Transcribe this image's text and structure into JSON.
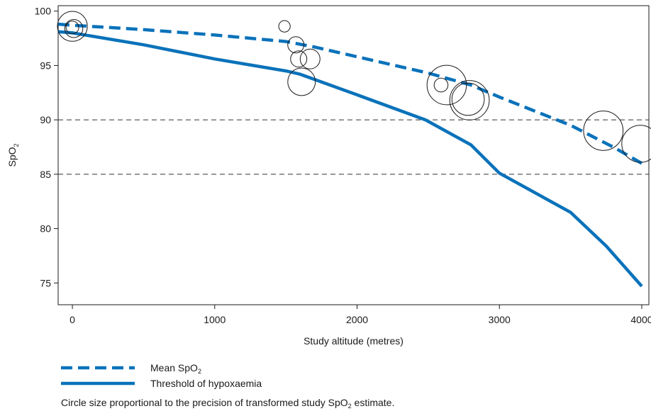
{
  "chart_data": {
    "type": "line",
    "xlabel": "Study altitude (metres)",
    "ylabel": {
      "base": "SpO",
      "sub": "2"
    },
    "xlim": [
      -100,
      4050
    ],
    "ylim": [
      73,
      100.5
    ],
    "xticks": [
      0,
      1000,
      2000,
      3000,
      4000
    ],
    "yticks": [
      75,
      80,
      85,
      90,
      95,
      100
    ],
    "reference_lines": [
      90,
      85
    ],
    "grid": false,
    "colors": {
      "series": "#0a72ba",
      "points": "#1a1a1a",
      "reference": "#333333"
    },
    "series": [
      {
        "name": "Mean SpO₂",
        "style": "dashed",
        "x": [
          -100,
          0,
          500,
          1000,
          1500,
          1700,
          2000,
          2500,
          2800,
          3000,
          3500,
          3800,
          4000
        ],
        "y": [
          98.8,
          98.7,
          98.3,
          97.8,
          97.2,
          96.7,
          95.8,
          94.3,
          93.2,
          92.1,
          89.5,
          87.5,
          86.0
        ]
      },
      {
        "name": "Threshold of hypoxaemia",
        "style": "solid",
        "x": [
          -100,
          0,
          500,
          1000,
          1500,
          1600,
          2000,
          2480,
          2800,
          3000,
          3500,
          3750,
          4000
        ],
        "y": [
          98.1,
          98.0,
          96.9,
          95.6,
          94.5,
          94.2,
          92.3,
          90.0,
          87.7,
          85.1,
          81.5,
          78.4,
          74.7
        ]
      }
    ],
    "points": [
      {
        "x": 0,
        "y": 98.6,
        "weight": 3.6
      },
      {
        "x": 10,
        "y": 98.4,
        "weight": 1.6
      },
      {
        "x": 0,
        "y": 98.5,
        "weight": 0.7
      },
      {
        "x": 1490,
        "y": 98.6,
        "weight": 0.5
      },
      {
        "x": 1570,
        "y": 96.9,
        "weight": 1.3
      },
      {
        "x": 1590,
        "y": 95.6,
        "weight": 1.3
      },
      {
        "x": 1670,
        "y": 95.6,
        "weight": 1.9
      },
      {
        "x": 1610,
        "y": 93.5,
        "weight": 3.2
      },
      {
        "x": 2590,
        "y": 93.2,
        "weight": 0.9
      },
      {
        "x": 2630,
        "y": 93.2,
        "weight": 5.2
      },
      {
        "x": 2780,
        "y": 91.9,
        "weight": 4.0
      },
      {
        "x": 2790,
        "y": 91.8,
        "weight": 5.2
      },
      {
        "x": 3730,
        "y": 89.0,
        "weight": 5.2
      },
      {
        "x": 3990,
        "y": 87.8,
        "weight": 4.8
      }
    ]
  },
  "legend": {
    "mean": {
      "base": "Mean SpO",
      "sub": "2"
    },
    "threshold": "Threshold of hypoxaemia"
  },
  "footnote": {
    "before": "Circle size proportional to the precision of transformed study SpO",
    "sub": "2",
    "after": " estimate."
  }
}
